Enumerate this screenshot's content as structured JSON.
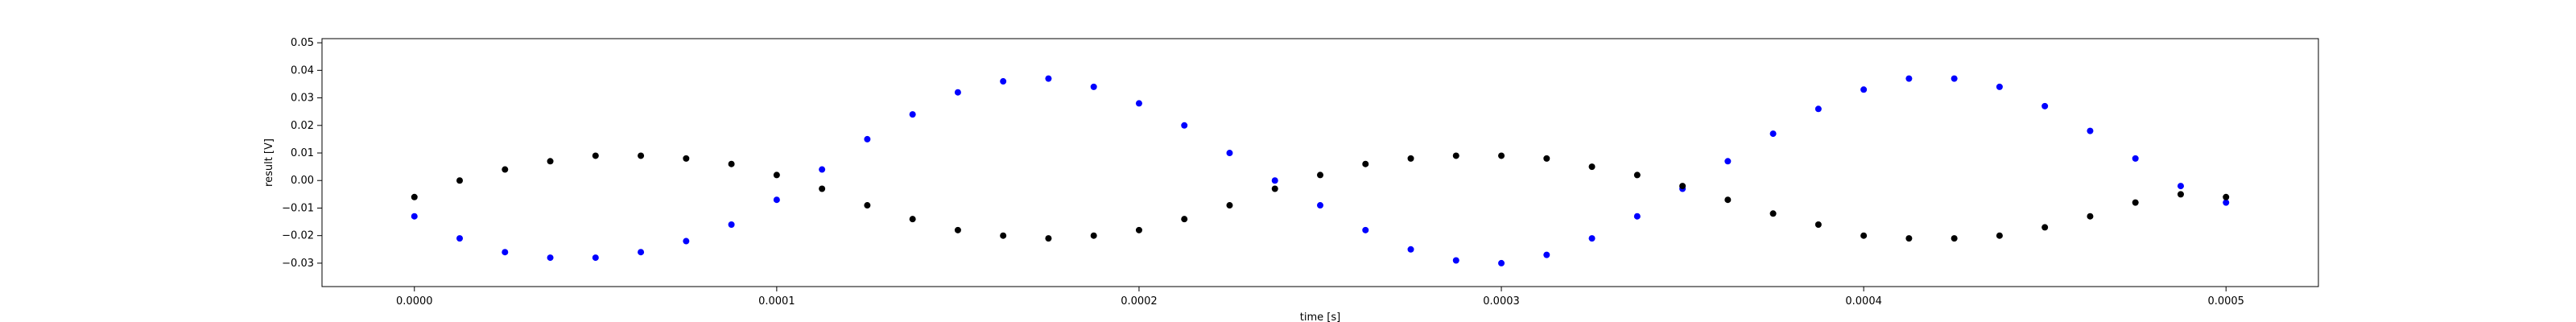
{
  "chart_data": {
    "type": "scatter",
    "title": "",
    "xlabel": "time [s]",
    "ylabel": "result [V]",
    "xlim": [
      -2.55e-05,
      0.0005255
    ],
    "ylim": [
      -0.0385,
      0.0515
    ],
    "x_ticks": [
      0.0,
      0.0001,
      0.0002,
      0.0003,
      0.0004,
      0.0005
    ],
    "x_tick_labels": [
      "0.0000",
      "0.0001",
      "0.0002",
      "0.0003",
      "0.0004",
      "0.0005"
    ],
    "y_ticks": [
      -0.03,
      -0.02,
      -0.01,
      0.0,
      0.01,
      0.02,
      0.03,
      0.04,
      0.05
    ],
    "y_tick_labels": [
      "−0.03",
      "−0.02",
      "−0.01",
      "0.00",
      "0.01",
      "0.02",
      "0.03",
      "0.04",
      "0.05"
    ],
    "grid": false,
    "legend": "none",
    "series": [
      {
        "color": "#0000ff",
        "marker": "dot",
        "x": [
          0.0,
          1.25e-05,
          2.5e-05,
          3.75e-05,
          5e-05,
          6.25e-05,
          7.5e-05,
          8.75e-05,
          0.0001,
          0.0001125,
          0.000125,
          0.0001375,
          0.00015,
          0.0001625,
          0.000175,
          0.0001875,
          0.0002,
          0.0002125,
          0.000225,
          0.0002375,
          0.00025,
          0.0002625,
          0.000275,
          0.0002875,
          0.0003,
          0.0003125,
          0.000325,
          0.0003375,
          0.00035,
          0.0003625,
          0.000375,
          0.0003875,
          0.0004,
          0.0004125,
          0.000425,
          0.0004375,
          0.00045,
          0.0004625,
          0.000475,
          0.0004875,
          0.0005
        ],
        "y": [
          -0.013,
          -0.021,
          -0.026,
          -0.028,
          -0.028,
          -0.026,
          -0.022,
          -0.016,
          -0.007,
          0.004,
          0.015,
          0.024,
          0.032,
          0.036,
          0.037,
          0.034,
          0.028,
          0.02,
          0.01,
          0.0,
          -0.009,
          -0.018,
          -0.025,
          -0.029,
          -0.03,
          -0.027,
          -0.021,
          -0.013,
          -0.003,
          0.007,
          0.017,
          0.026,
          0.033,
          0.037,
          0.037,
          0.034,
          0.027,
          0.018,
          0.008,
          -0.002,
          -0.008
        ]
      },
      {
        "color": "#000000",
        "marker": "dot",
        "x": [
          0.0,
          1.25e-05,
          2.5e-05,
          3.75e-05,
          5e-05,
          6.25e-05,
          7.5e-05,
          8.75e-05,
          0.0001,
          0.0001125,
          0.000125,
          0.0001375,
          0.00015,
          0.0001625,
          0.000175,
          0.0001875,
          0.0002,
          0.0002125,
          0.000225,
          0.0002375,
          0.00025,
          0.0002625,
          0.000275,
          0.0002875,
          0.0003,
          0.0003125,
          0.000325,
          0.0003375,
          0.00035,
          0.0003625,
          0.000375,
          0.0003875,
          0.0004,
          0.0004125,
          0.000425,
          0.0004375,
          0.00045,
          0.0004625,
          0.000475,
          0.0004875,
          0.0005
        ],
        "y": [
          -0.006,
          0.0,
          0.004,
          0.007,
          0.009,
          0.009,
          0.008,
          0.006,
          0.002,
          -0.003,
          -0.009,
          -0.014,
          -0.018,
          -0.02,
          -0.021,
          -0.02,
          -0.018,
          -0.014,
          -0.009,
          -0.003,
          0.002,
          0.006,
          0.008,
          0.009,
          0.009,
          0.008,
          0.005,
          0.002,
          -0.002,
          -0.007,
          -0.012,
          -0.016,
          -0.02,
          -0.021,
          -0.021,
          -0.02,
          -0.017,
          -0.013,
          -0.008,
          -0.005,
          -0.006
        ]
      }
    ]
  }
}
